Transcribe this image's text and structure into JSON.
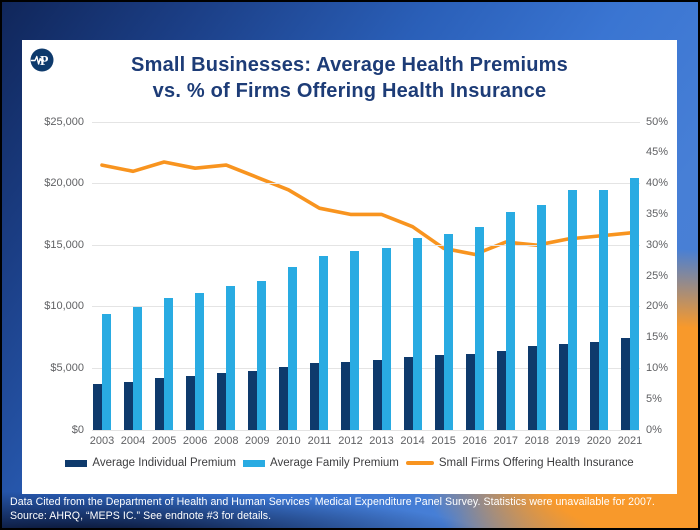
{
  "header": {
    "title_line1": "Small Businesses: Average Health Premiums",
    "title_line2": "vs. % of Firms Offering Health Insurance",
    "logo": "pulse-p-logo"
  },
  "footer": {
    "line1": "Data Cited from the Department of Health and Human Services’ Medical Expenditure Panel Survey. Statistics were unavailable for 2007.",
    "line2": "Source: AHRQ, “MEPS IC.” See endnote #3 for details."
  },
  "colors": {
    "individual_bar": "#0e3a6c",
    "family_bar": "#29abe2",
    "offer_line": "#f8941f",
    "title_text": "#1d3c77",
    "axis_text": "#606164",
    "gridline": "#e4e4e4",
    "card_bg": "#ffffff"
  },
  "chart_data": {
    "type": "bar+line combo",
    "title": "Small Businesses: Average Health Premiums vs. % of Firms Offering Health Insurance",
    "categories": [
      "2003",
      "2004",
      "2005",
      "2006",
      "2008",
      "2009",
      "2010",
      "2011",
      "2012",
      "2013",
      "2014",
      "2015",
      "2016",
      "2017",
      "2018",
      "2019",
      "2020",
      "2021"
    ],
    "series": [
      {
        "name": "Average Individual Premium",
        "type": "bar",
        "axis": "left",
        "color": "#0e3a6c",
        "values": [
          3700,
          3900,
          4200,
          4400,
          4600,
          4800,
          5100,
          5400,
          5550,
          5650,
          5950,
          6050,
          6150,
          6450,
          6800,
          7000,
          7150,
          7500
        ]
      },
      {
        "name": "Average Family Premium",
        "type": "bar",
        "axis": "left",
        "color": "#29abe2",
        "values": [
          9400,
          10000,
          10700,
          11100,
          11700,
          12100,
          13200,
          14100,
          14500,
          14800,
          15600,
          15900,
          16500,
          17700,
          18300,
          19500,
          19500,
          20450
        ]
      },
      {
        "name": "Small Firms Offering Health Insurance",
        "type": "line",
        "axis": "right",
        "color": "#f8941f",
        "values": [
          43,
          42,
          43.5,
          42.5,
          43,
          41,
          39,
          36,
          35,
          35,
          33,
          29.5,
          28.5,
          30.5,
          30,
          31,
          31.5,
          32
        ]
      }
    ],
    "left_axis": {
      "min": 0,
      "max": 25000,
      "step": 5000,
      "tick_labels_top_to_bottom": [
        "$25,000",
        "$20,000",
        "$15,000",
        "$10,000",
        "$5,000",
        "$0"
      ]
    },
    "right_axis": {
      "min": 0,
      "max": 50,
      "step": 5,
      "tick_labels_top_to_bottom": [
        "50%",
        "45%",
        "40%",
        "35%",
        "30%",
        "25%",
        "20%",
        "15%",
        "10%",
        "5%",
        "0%"
      ]
    },
    "grid": "horizontal only, at $5,000 / 10% intervals",
    "legend_position": "bottom center"
  }
}
